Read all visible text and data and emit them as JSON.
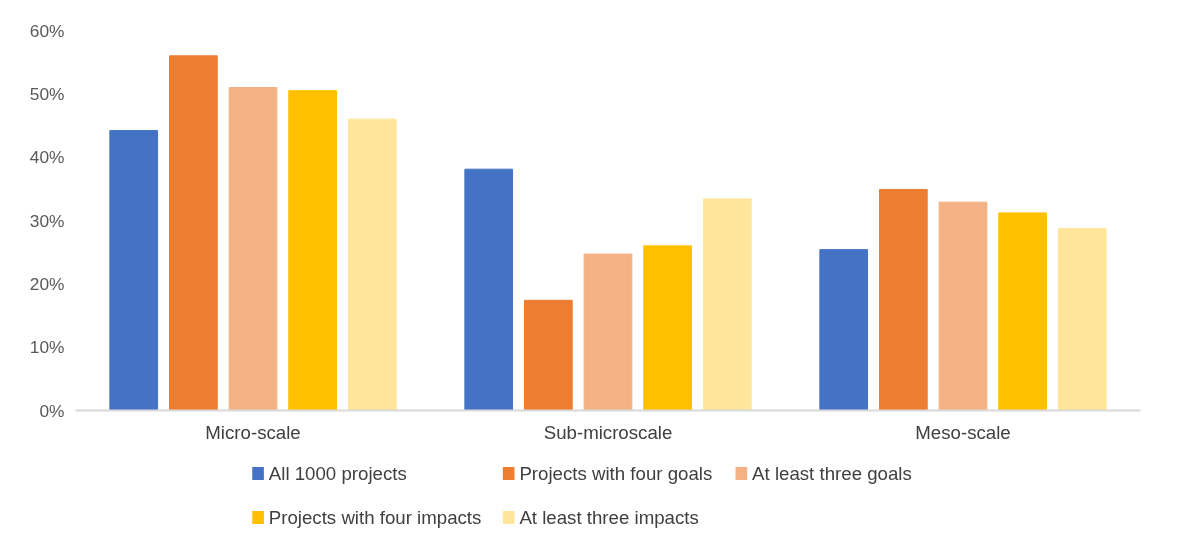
{
  "chart_data": {
    "type": "bar",
    "categories": [
      "Micro-scale",
      "Sub-microscale",
      "Meso-scale"
    ],
    "series": [
      {
        "name": "All 1000 projects",
        "color": "#4472c4",
        "values": [
          44.2,
          38.1,
          25.4
        ]
      },
      {
        "name": "Projects with four goals",
        "color": "#ed7d31",
        "values": [
          56.0,
          17.4,
          34.9
        ]
      },
      {
        "name": "At least three goals",
        "color": "#f4b183",
        "values": [
          51.0,
          24.7,
          32.9
        ]
      },
      {
        "name": "Projects with four impacts",
        "color": "#ffc000",
        "values": [
          50.5,
          26.0,
          31.2
        ]
      },
      {
        "name": "At least three impacts",
        "color": "#ffe699",
        "values": [
          46.0,
          33.4,
          28.7
        ]
      }
    ],
    "ylim": [
      0,
      60
    ],
    "yticks": [
      {
        "value": 0,
        "label": "0%"
      },
      {
        "value": 10,
        "label": "10%"
      },
      {
        "value": 20,
        "label": "20%"
      },
      {
        "value": 30,
        "label": "30%"
      },
      {
        "value": 40,
        "label": "40%"
      },
      {
        "value": 50,
        "label": "50%"
      },
      {
        "value": 60,
        "label": "60%"
      }
    ],
    "grid": false,
    "legend": "bottom"
  }
}
